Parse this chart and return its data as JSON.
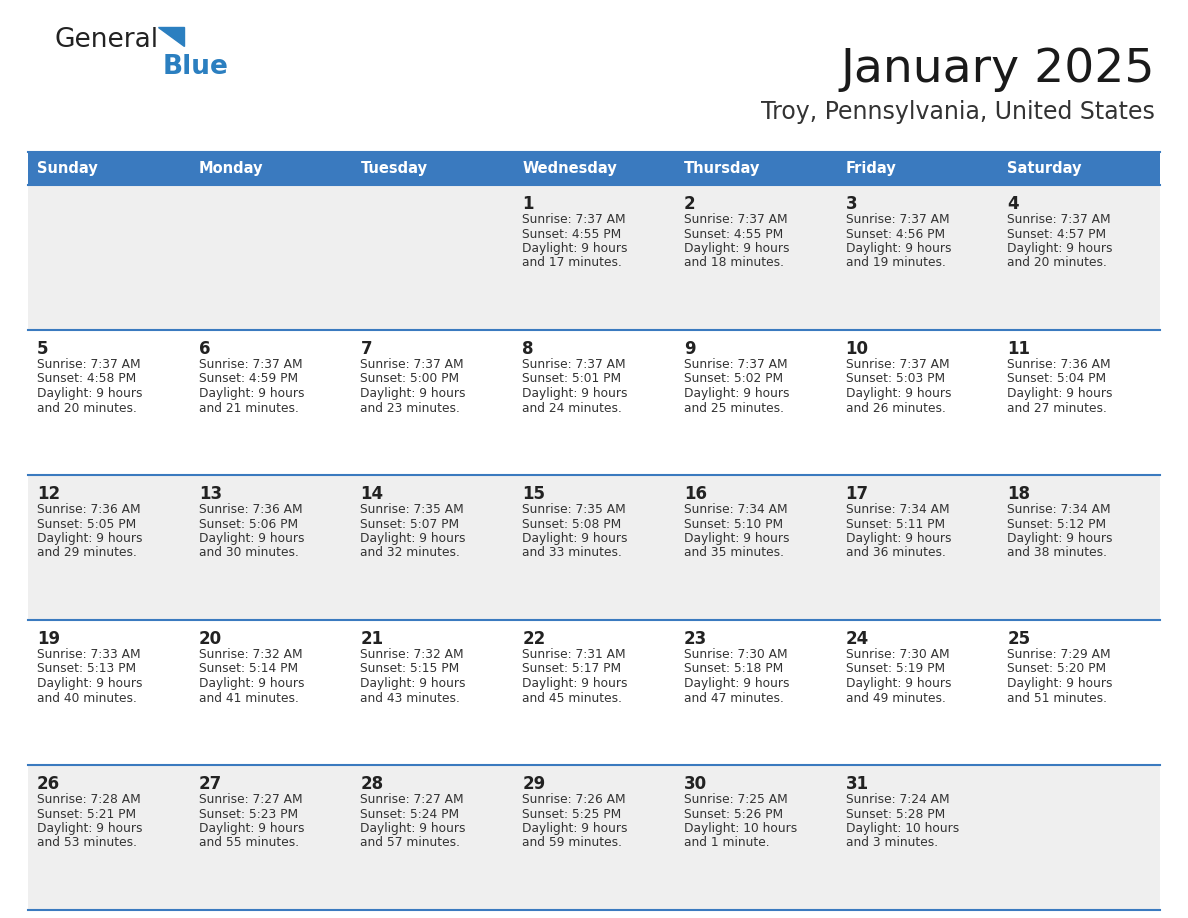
{
  "title": "January 2025",
  "subtitle": "Troy, Pennsylvania, United States",
  "days_of_week": [
    "Sunday",
    "Monday",
    "Tuesday",
    "Wednesday",
    "Thursday",
    "Friday",
    "Saturday"
  ],
  "header_bg": "#3a7abf",
  "header_text": "#ffffff",
  "row_bg_odd": "#efefef",
  "row_bg_even": "#ffffff",
  "cell_border": "#3a7abf",
  "day_number_color": "#222222",
  "text_color": "#333333",
  "calendar_data": [
    [
      {
        "day": null,
        "sunrise": null,
        "sunset": null,
        "daylight_line1": null,
        "daylight_line2": null
      },
      {
        "day": null,
        "sunrise": null,
        "sunset": null,
        "daylight_line1": null,
        "daylight_line2": null
      },
      {
        "day": null,
        "sunrise": null,
        "sunset": null,
        "daylight_line1": null,
        "daylight_line2": null
      },
      {
        "day": "1",
        "sunrise": "7:37 AM",
        "sunset": "4:55 PM",
        "daylight_line1": "9 hours",
        "daylight_line2": "and 17 minutes."
      },
      {
        "day": "2",
        "sunrise": "7:37 AM",
        "sunset": "4:55 PM",
        "daylight_line1": "9 hours",
        "daylight_line2": "and 18 minutes."
      },
      {
        "day": "3",
        "sunrise": "7:37 AM",
        "sunset": "4:56 PM",
        "daylight_line1": "9 hours",
        "daylight_line2": "and 19 minutes."
      },
      {
        "day": "4",
        "sunrise": "7:37 AM",
        "sunset": "4:57 PM",
        "daylight_line1": "9 hours",
        "daylight_line2": "and 20 minutes."
      }
    ],
    [
      {
        "day": "5",
        "sunrise": "7:37 AM",
        "sunset": "4:58 PM",
        "daylight_line1": "9 hours",
        "daylight_line2": "and 20 minutes."
      },
      {
        "day": "6",
        "sunrise": "7:37 AM",
        "sunset": "4:59 PM",
        "daylight_line1": "9 hours",
        "daylight_line2": "and 21 minutes."
      },
      {
        "day": "7",
        "sunrise": "7:37 AM",
        "sunset": "5:00 PM",
        "daylight_line1": "9 hours",
        "daylight_line2": "and 23 minutes."
      },
      {
        "day": "8",
        "sunrise": "7:37 AM",
        "sunset": "5:01 PM",
        "daylight_line1": "9 hours",
        "daylight_line2": "and 24 minutes."
      },
      {
        "day": "9",
        "sunrise": "7:37 AM",
        "sunset": "5:02 PM",
        "daylight_line1": "9 hours",
        "daylight_line2": "and 25 minutes."
      },
      {
        "day": "10",
        "sunrise": "7:37 AM",
        "sunset": "5:03 PM",
        "daylight_line1": "9 hours",
        "daylight_line2": "and 26 minutes."
      },
      {
        "day": "11",
        "sunrise": "7:36 AM",
        "sunset": "5:04 PM",
        "daylight_line1": "9 hours",
        "daylight_line2": "and 27 minutes."
      }
    ],
    [
      {
        "day": "12",
        "sunrise": "7:36 AM",
        "sunset": "5:05 PM",
        "daylight_line1": "9 hours",
        "daylight_line2": "and 29 minutes."
      },
      {
        "day": "13",
        "sunrise": "7:36 AM",
        "sunset": "5:06 PM",
        "daylight_line1": "9 hours",
        "daylight_line2": "and 30 minutes."
      },
      {
        "day": "14",
        "sunrise": "7:35 AM",
        "sunset": "5:07 PM",
        "daylight_line1": "9 hours",
        "daylight_line2": "and 32 minutes."
      },
      {
        "day": "15",
        "sunrise": "7:35 AM",
        "sunset": "5:08 PM",
        "daylight_line1": "9 hours",
        "daylight_line2": "and 33 minutes."
      },
      {
        "day": "16",
        "sunrise": "7:34 AM",
        "sunset": "5:10 PM",
        "daylight_line1": "9 hours",
        "daylight_line2": "and 35 minutes."
      },
      {
        "day": "17",
        "sunrise": "7:34 AM",
        "sunset": "5:11 PM",
        "daylight_line1": "9 hours",
        "daylight_line2": "and 36 minutes."
      },
      {
        "day": "18",
        "sunrise": "7:34 AM",
        "sunset": "5:12 PM",
        "daylight_line1": "9 hours",
        "daylight_line2": "and 38 minutes."
      }
    ],
    [
      {
        "day": "19",
        "sunrise": "7:33 AM",
        "sunset": "5:13 PM",
        "daylight_line1": "9 hours",
        "daylight_line2": "and 40 minutes."
      },
      {
        "day": "20",
        "sunrise": "7:32 AM",
        "sunset": "5:14 PM",
        "daylight_line1": "9 hours",
        "daylight_line2": "and 41 minutes."
      },
      {
        "day": "21",
        "sunrise": "7:32 AM",
        "sunset": "5:15 PM",
        "daylight_line1": "9 hours",
        "daylight_line2": "and 43 minutes."
      },
      {
        "day": "22",
        "sunrise": "7:31 AM",
        "sunset": "5:17 PM",
        "daylight_line1": "9 hours",
        "daylight_line2": "and 45 minutes."
      },
      {
        "day": "23",
        "sunrise": "7:30 AM",
        "sunset": "5:18 PM",
        "daylight_line1": "9 hours",
        "daylight_line2": "and 47 minutes."
      },
      {
        "day": "24",
        "sunrise": "7:30 AM",
        "sunset": "5:19 PM",
        "daylight_line1": "9 hours",
        "daylight_line2": "and 49 minutes."
      },
      {
        "day": "25",
        "sunrise": "7:29 AM",
        "sunset": "5:20 PM",
        "daylight_line1": "9 hours",
        "daylight_line2": "and 51 minutes."
      }
    ],
    [
      {
        "day": "26",
        "sunrise": "7:28 AM",
        "sunset": "5:21 PM",
        "daylight_line1": "9 hours",
        "daylight_line2": "and 53 minutes."
      },
      {
        "day": "27",
        "sunrise": "7:27 AM",
        "sunset": "5:23 PM",
        "daylight_line1": "9 hours",
        "daylight_line2": "and 55 minutes."
      },
      {
        "day": "28",
        "sunrise": "7:27 AM",
        "sunset": "5:24 PM",
        "daylight_line1": "9 hours",
        "daylight_line2": "and 57 minutes."
      },
      {
        "day": "29",
        "sunrise": "7:26 AM",
        "sunset": "5:25 PM",
        "daylight_line1": "9 hours",
        "daylight_line2": "and 59 minutes."
      },
      {
        "day": "30",
        "sunrise": "7:25 AM",
        "sunset": "5:26 PM",
        "daylight_line1": "10 hours",
        "daylight_line2": "and 1 minute."
      },
      {
        "day": "31",
        "sunrise": "7:24 AM",
        "sunset": "5:28 PM",
        "daylight_line1": "10 hours",
        "daylight_line2": "and 3 minutes."
      },
      {
        "day": null,
        "sunrise": null,
        "sunset": null,
        "daylight_line1": null,
        "daylight_line2": null
      }
    ]
  ]
}
